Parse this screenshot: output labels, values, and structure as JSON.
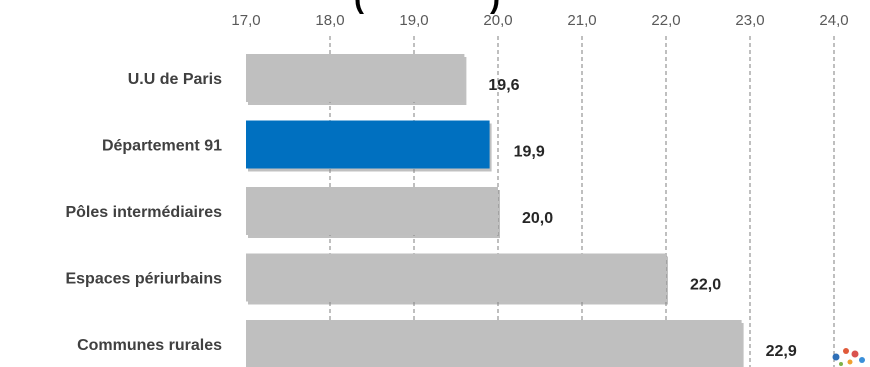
{
  "chart_data": {
    "type": "bar",
    "orientation": "horizontal",
    "title_fragment": "(",
    "categories": [
      "U.U de Paris",
      "Département 91",
      "Pôles intermédiaires",
      "Espaces périurbains",
      "Communes rurales"
    ],
    "values": [
      19.6,
      19.9,
      20.0,
      22.0,
      22.9
    ],
    "value_labels": [
      "19,6",
      "19,9",
      "20,0",
      "22,0",
      "22,9"
    ],
    "highlight_category": "Département 91",
    "xlim": [
      17.0,
      24.0
    ],
    "xticks": [
      "17,0",
      "18,0",
      "19,0",
      "20,0",
      "21,0",
      "22,0",
      "23,0",
      "24,0"
    ],
    "axis_position": "top",
    "grid": true,
    "colors": {
      "default_bar": "#bfbfbf",
      "highlight_bar": "#0070c0",
      "grid": "#7f7f7f"
    }
  },
  "logo": {
    "icon": "dots-logo-icon"
  }
}
